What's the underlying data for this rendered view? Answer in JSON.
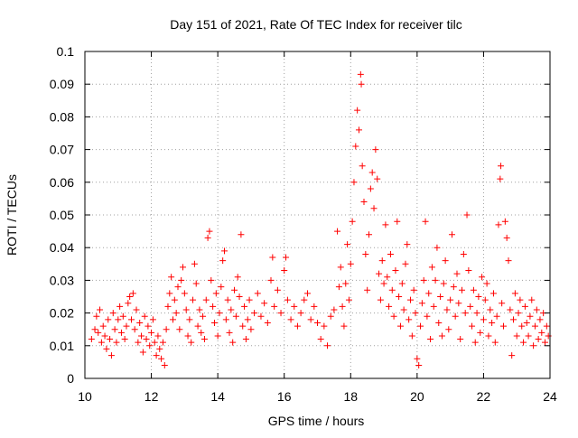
{
  "chart_data": {
    "type": "scatter",
    "title": "Day 151 of 2021, Rate Of TEC Index for receiver tilc",
    "xlabel": "GPS time / hours",
    "ylabel": "ROTI / TECUs",
    "xlim": [
      10,
      24
    ],
    "ylim": [
      0,
      0.1
    ],
    "xticks": [
      10,
      12,
      14,
      16,
      18,
      20,
      22,
      24
    ],
    "yticks": [
      0,
      0.01,
      0.02,
      0.03,
      0.04,
      0.05,
      0.06,
      0.07,
      0.08,
      0.09,
      0.1
    ],
    "xtick_labels": [
      "10",
      "12",
      "14",
      "16",
      "18",
      "20",
      "22",
      "24"
    ],
    "ytick_labels": [
      "0",
      "0.01",
      "0.02",
      "0.03",
      "0.04",
      "0.05",
      "0.06",
      "0.07",
      "0.08",
      "0.09",
      "0.1"
    ],
    "grid": true,
    "marker": "+",
    "color": "#ff0000",
    "series": [
      {
        "points": [
          [
            10.2,
            0.012
          ],
          [
            10.3,
            0.015
          ],
          [
            10.35,
            0.019
          ],
          [
            10.4,
            0.014
          ],
          [
            10.45,
            0.021
          ],
          [
            10.5,
            0.011
          ],
          [
            10.55,
            0.016
          ],
          [
            10.6,
            0.013
          ],
          [
            10.65,
            0.009
          ],
          [
            10.7,
            0.018
          ],
          [
            10.75,
            0.012
          ],
          [
            10.8,
            0.007
          ],
          [
            10.85,
            0.02
          ],
          [
            10.9,
            0.015
          ],
          [
            10.95,
            0.011
          ],
          [
            11.0,
            0.018
          ],
          [
            11.05,
            0.022
          ],
          [
            11.1,
            0.014
          ],
          [
            11.15,
            0.019
          ],
          [
            11.2,
            0.012
          ],
          [
            11.25,
            0.016
          ],
          [
            11.3,
            0.023
          ],
          [
            11.35,
            0.025
          ],
          [
            11.4,
            0.018
          ],
          [
            11.45,
            0.026
          ],
          [
            11.5,
            0.015
          ],
          [
            11.55,
            0.021
          ],
          [
            11.6,
            0.011
          ],
          [
            11.65,
            0.017
          ],
          [
            11.7,
            0.013
          ],
          [
            11.75,
            0.008
          ],
          [
            11.8,
            0.019
          ],
          [
            11.85,
            0.012
          ],
          [
            11.9,
            0.016
          ],
          [
            11.95,
            0.01
          ],
          [
            12.0,
            0.014
          ],
          [
            12.05,
            0.018
          ],
          [
            12.1,
            0.011
          ],
          [
            12.15,
            0.007
          ],
          [
            12.2,
            0.013
          ],
          [
            12.25,
            0.009
          ],
          [
            12.3,
            0.006
          ],
          [
            12.35,
            0.011
          ],
          [
            12.4,
            0.004
          ],
          [
            12.45,
            0.015
          ],
          [
            12.5,
            0.022
          ],
          [
            12.55,
            0.026
          ],
          [
            12.6,
            0.031
          ],
          [
            12.65,
            0.018
          ],
          [
            12.7,
            0.024
          ],
          [
            12.75,
            0.02
          ],
          [
            12.8,
            0.028
          ],
          [
            12.85,
            0.015
          ],
          [
            12.9,
            0.03
          ],
          [
            12.95,
            0.034
          ],
          [
            13.0,
            0.026
          ],
          [
            13.05,
            0.021
          ],
          [
            13.1,
            0.013
          ],
          [
            13.15,
            0.018
          ],
          [
            13.2,
            0.011
          ],
          [
            13.25,
            0.024
          ],
          [
            13.3,
            0.035
          ],
          [
            13.35,
            0.029
          ],
          [
            13.4,
            0.016
          ],
          [
            13.45,
            0.021
          ],
          [
            13.5,
            0.014
          ],
          [
            13.55,
            0.019
          ],
          [
            13.6,
            0.012
          ],
          [
            13.65,
            0.024
          ],
          [
            13.7,
            0.043
          ],
          [
            13.75,
            0.045
          ],
          [
            13.8,
            0.03
          ],
          [
            13.85,
            0.022
          ],
          [
            13.9,
            0.017
          ],
          [
            13.95,
            0.026
          ],
          [
            14.0,
            0.013
          ],
          [
            14.05,
            0.02
          ],
          [
            14.1,
            0.028
          ],
          [
            14.15,
            0.036
          ],
          [
            14.2,
            0.039
          ],
          [
            14.25,
            0.018
          ],
          [
            14.3,
            0.024
          ],
          [
            14.35,
            0.014
          ],
          [
            14.4,
            0.021
          ],
          [
            14.45,
            0.011
          ],
          [
            14.5,
            0.027
          ],
          [
            14.55,
            0.019
          ],
          [
            14.6,
            0.031
          ],
          [
            14.65,
            0.025
          ],
          [
            14.7,
            0.044
          ],
          [
            14.75,
            0.016
          ],
          [
            14.8,
            0.022
          ],
          [
            14.85,
            0.012
          ],
          [
            14.9,
            0.018
          ],
          [
            14.95,
            0.024
          ],
          [
            15.0,
            0.015
          ],
          [
            15.1,
            0.02
          ],
          [
            15.2,
            0.026
          ],
          [
            15.3,
            0.019
          ],
          [
            15.4,
            0.023
          ],
          [
            15.5,
            0.017
          ],
          [
            15.6,
            0.03
          ],
          [
            15.65,
            0.037
          ],
          [
            15.7,
            0.022
          ],
          [
            15.8,
            0.027
          ],
          [
            15.9,
            0.02
          ],
          [
            16.0,
            0.033
          ],
          [
            16.05,
            0.037
          ],
          [
            16.1,
            0.024
          ],
          [
            16.2,
            0.018
          ],
          [
            16.3,
            0.022
          ],
          [
            16.4,
            0.016
          ],
          [
            16.5,
            0.02
          ],
          [
            16.6,
            0.024
          ],
          [
            16.7,
            0.026
          ],
          [
            16.8,
            0.018
          ],
          [
            16.9,
            0.022
          ],
          [
            17.0,
            0.017
          ],
          [
            17.1,
            0.012
          ],
          [
            17.2,
            0.016
          ],
          [
            17.3,
            0.01
          ],
          [
            17.4,
            0.019
          ],
          [
            17.5,
            0.021
          ],
          [
            17.6,
            0.045
          ],
          [
            17.65,
            0.028
          ],
          [
            17.7,
            0.034
          ],
          [
            17.75,
            0.022
          ],
          [
            17.8,
            0.016
          ],
          [
            17.85,
            0.029
          ],
          [
            17.9,
            0.041
          ],
          [
            17.95,
            0.024
          ],
          [
            18.0,
            0.035
          ],
          [
            18.05,
            0.048
          ],
          [
            18.1,
            0.06
          ],
          [
            18.15,
            0.071
          ],
          [
            18.2,
            0.082
          ],
          [
            18.25,
            0.076
          ],
          [
            18.3,
            0.093
          ],
          [
            18.32,
            0.09
          ],
          [
            18.35,
            0.065
          ],
          [
            18.4,
            0.054
          ],
          [
            18.45,
            0.038
          ],
          [
            18.5,
            0.027
          ],
          [
            18.55,
            0.044
          ],
          [
            18.6,
            0.058
          ],
          [
            18.65,
            0.063
          ],
          [
            18.7,
            0.052
          ],
          [
            18.75,
            0.07
          ],
          [
            18.8,
            0.061
          ],
          [
            18.85,
            0.032
          ],
          [
            18.9,
            0.024
          ],
          [
            18.95,
            0.036
          ],
          [
            19.0,
            0.029
          ],
          [
            19.05,
            0.047
          ],
          [
            19.1,
            0.031
          ],
          [
            19.15,
            0.022
          ],
          [
            19.2,
            0.038
          ],
          [
            19.25,
            0.027
          ],
          [
            19.3,
            0.019
          ],
          [
            19.35,
            0.033
          ],
          [
            19.4,
            0.048
          ],
          [
            19.45,
            0.025
          ],
          [
            19.5,
            0.016
          ],
          [
            19.55,
            0.029
          ],
          [
            19.6,
            0.021
          ],
          [
            19.65,
            0.035
          ],
          [
            19.7,
            0.041
          ],
          [
            19.75,
            0.018
          ],
          [
            19.8,
            0.024
          ],
          [
            19.85,
            0.013
          ],
          [
            19.9,
            0.027
          ],
          [
            19.95,
            0.02
          ],
          [
            20.0,
            0.006
          ],
          [
            20.05,
            0.004
          ],
          [
            20.1,
            0.016
          ],
          [
            20.15,
            0.023
          ],
          [
            20.2,
            0.03
          ],
          [
            20.25,
            0.048
          ],
          [
            20.3,
            0.019
          ],
          [
            20.35,
            0.026
          ],
          [
            20.4,
            0.012
          ],
          [
            20.45,
            0.034
          ],
          [
            20.5,
            0.022
          ],
          [
            20.55,
            0.03
          ],
          [
            20.6,
            0.04
          ],
          [
            20.65,
            0.017
          ],
          [
            20.7,
            0.025
          ],
          [
            20.75,
            0.013
          ],
          [
            20.8,
            0.029
          ],
          [
            20.85,
            0.036
          ],
          [
            20.9,
            0.021
          ],
          [
            20.95,
            0.015
          ],
          [
            21.0,
            0.024
          ],
          [
            21.05,
            0.044
          ],
          [
            21.1,
            0.028
          ],
          [
            21.15,
            0.019
          ],
          [
            21.2,
            0.032
          ],
          [
            21.25,
            0.023
          ],
          [
            21.3,
            0.012
          ],
          [
            21.35,
            0.027
          ],
          [
            21.4,
            0.038
          ],
          [
            21.45,
            0.02
          ],
          [
            21.5,
            0.05
          ],
          [
            21.55,
            0.033
          ],
          [
            21.6,
            0.022
          ],
          [
            21.65,
            0.016
          ],
          [
            21.7,
            0.027
          ],
          [
            21.75,
            0.011
          ],
          [
            21.8,
            0.02
          ],
          [
            21.85,
            0.025
          ],
          [
            21.9,
            0.014
          ],
          [
            21.95,
            0.031
          ],
          [
            22.0,
            0.018
          ],
          [
            22.05,
            0.024
          ],
          [
            22.1,
            0.029
          ],
          [
            22.15,
            0.013
          ],
          [
            22.2,
            0.021
          ],
          [
            22.25,
            0.017
          ],
          [
            22.3,
            0.026
          ],
          [
            22.35,
            0.011
          ],
          [
            22.4,
            0.019
          ],
          [
            22.45,
            0.047
          ],
          [
            22.5,
            0.061
          ],
          [
            22.52,
            0.065
          ],
          [
            22.55,
            0.023
          ],
          [
            22.6,
            0.016
          ],
          [
            22.65,
            0.048
          ],
          [
            22.7,
            0.043
          ],
          [
            22.75,
            0.036
          ],
          [
            22.8,
            0.021
          ],
          [
            22.85,
            0.007
          ],
          [
            22.9,
            0.018
          ],
          [
            22.95,
            0.026
          ],
          [
            23.0,
            0.013
          ],
          [
            23.05,
            0.02
          ],
          [
            23.1,
            0.024
          ],
          [
            23.15,
            0.016
          ],
          [
            23.2,
            0.011
          ],
          [
            23.25,
            0.022
          ],
          [
            23.3,
            0.017
          ],
          [
            23.35,
            0.013
          ],
          [
            23.4,
            0.019
          ],
          [
            23.45,
            0.024
          ],
          [
            23.5,
            0.01
          ],
          [
            23.55,
            0.016
          ],
          [
            23.6,
            0.021
          ],
          [
            23.65,
            0.012
          ],
          [
            23.7,
            0.018
          ],
          [
            23.75,
            0.014
          ],
          [
            23.8,
            0.02
          ],
          [
            23.85,
            0.011
          ],
          [
            23.9,
            0.016
          ],
          [
            23.95,
            0.013
          ]
        ]
      }
    ]
  }
}
